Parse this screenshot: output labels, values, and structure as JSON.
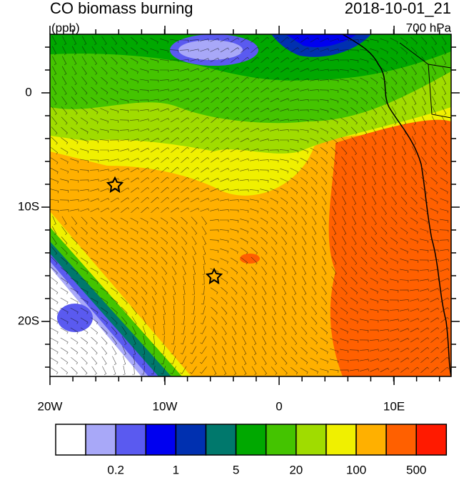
{
  "header": {
    "title": "CO biomass burning",
    "units": "(ppb)",
    "datetime": "2018-10-01_21",
    "level": "700 hPa"
  },
  "map": {
    "lat_labels": [
      "0",
      "10S",
      "20S"
    ],
    "lon_labels": [
      "20W",
      "10W",
      "0",
      "10E"
    ]
  },
  "colorbar": {
    "colors": [
      "#ffffff",
      "#a8a8f8",
      "#5a5af0",
      "#0000f0",
      "#0030b0",
      "#00786c",
      "#00a800",
      "#44c400",
      "#a0dc00",
      "#f0f000",
      "#ffb000",
      "#ff6000",
      "#ff1a00"
    ],
    "labels": [
      "0.2",
      "1",
      "5",
      "20",
      "100",
      "500"
    ]
  }
}
